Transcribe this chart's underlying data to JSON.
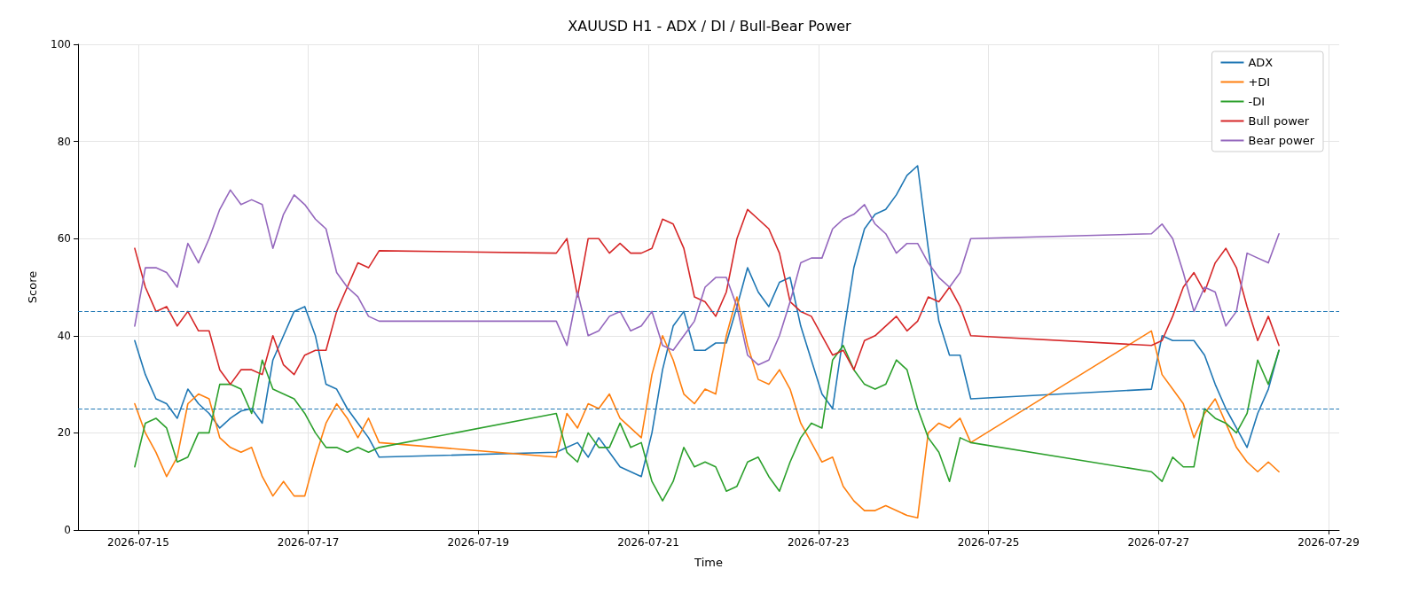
{
  "chart_data": {
    "type": "line",
    "title": "XAUUSD H1 - ADX / DI / Bull-Bear Power",
    "xlabel": "Time",
    "ylabel": "Score",
    "x": [
      "2026-07-14T23:00",
      "2026-07-15T02:00",
      "2026-07-15T05:00",
      "2026-07-15T08:00",
      "2026-07-15T11:00",
      "2026-07-15T14:00",
      "2026-07-15T17:00",
      "2026-07-15T20:00",
      "2026-07-15T23:00",
      "2026-07-16T02:00",
      "2026-07-16T05:00",
      "2026-07-16T08:00",
      "2026-07-16T11:00",
      "2026-07-16T14:00",
      "2026-07-16T17:00",
      "2026-07-16T20:00",
      "2026-07-16T23:00",
      "2026-07-17T02:00",
      "2026-07-17T05:00",
      "2026-07-17T08:00",
      "2026-07-17T11:00",
      "2026-07-17T14:00",
      "2026-07-17T17:00",
      "2026-07-17T20:00",
      "2026-07-19T22:00",
      "2026-07-20T01:00",
      "2026-07-20T04:00",
      "2026-07-20T07:00",
      "2026-07-20T10:00",
      "2026-07-20T13:00",
      "2026-07-20T16:00",
      "2026-07-20T19:00",
      "2026-07-20T22:00",
      "2026-07-21T01:00",
      "2026-07-21T04:00",
      "2026-07-21T07:00",
      "2026-07-21T10:00",
      "2026-07-21T13:00",
      "2026-07-21T16:00",
      "2026-07-21T19:00",
      "2026-07-21T22:00",
      "2026-07-22T01:00",
      "2026-07-22T04:00",
      "2026-07-22T07:00",
      "2026-07-22T10:00",
      "2026-07-22T13:00",
      "2026-07-22T16:00",
      "2026-07-22T19:00",
      "2026-07-22T22:00",
      "2026-07-23T01:00",
      "2026-07-23T04:00",
      "2026-07-23T07:00",
      "2026-07-23T10:00",
      "2026-07-23T13:00",
      "2026-07-23T16:00",
      "2026-07-23T19:00",
      "2026-07-23T22:00",
      "2026-07-24T01:00",
      "2026-07-24T04:00",
      "2026-07-24T07:00",
      "2026-07-24T10:00",
      "2026-07-24T13:00",
      "2026-07-24T16:00",
      "2026-07-24T19:00",
      "2026-07-26T22:00",
      "2026-07-27T01:00",
      "2026-07-27T04:00",
      "2026-07-27T07:00",
      "2026-07-27T10:00",
      "2026-07-27T13:00",
      "2026-07-27T16:00",
      "2026-07-27T19:00",
      "2026-07-27T22:00",
      "2026-07-28T01:00",
      "2026-07-28T04:00",
      "2026-07-28T07:00",
      "2026-07-28T10:00"
    ],
    "series": [
      {
        "name": "ADX",
        "color": "#1f77b4",
        "values": [
          39,
          32,
          27,
          26,
          23,
          29,
          26,
          24,
          21,
          23,
          24.5,
          25,
          22,
          35,
          40,
          45,
          46,
          40,
          30,
          29,
          25,
          22,
          19,
          15,
          16,
          17,
          18,
          15,
          19,
          16,
          13,
          12,
          11,
          20,
          33,
          42,
          45,
          37,
          37,
          38.5,
          38.5,
          46,
          54,
          49,
          46,
          51,
          52,
          42,
          35,
          28,
          25,
          40,
          54,
          62,
          65,
          66,
          69,
          73,
          75,
          58,
          43,
          36,
          36,
          27,
          29,
          40,
          39,
          39,
          39,
          36,
          30,
          25,
          21,
          17,
          24,
          29,
          37
        ]
      },
      {
        "name": "+DI",
        "color": "#ff7f0e",
        "values": [
          26,
          20,
          16,
          11,
          15,
          26,
          28,
          27,
          19,
          17,
          16,
          17,
          11,
          7,
          10,
          7,
          7,
          15,
          22,
          26,
          23,
          19,
          23,
          18,
          15,
          24,
          21,
          26,
          25,
          28,
          23,
          21,
          19,
          32,
          40,
          35,
          28,
          26,
          29,
          28,
          40,
          48,
          38,
          31,
          30,
          33,
          29,
          22,
          18,
          14,
          15,
          9,
          6,
          4,
          4,
          5,
          4,
          3,
          2.5,
          20,
          22,
          21,
          23,
          18,
          41,
          32,
          29,
          26,
          19,
          24,
          27,
          22,
          17,
          14,
          12,
          14,
          12
        ]
      },
      {
        "name": "-DI",
        "color": "#2ca02c",
        "values": [
          13,
          22,
          23,
          21,
          14,
          15,
          20,
          20,
          30,
          30,
          29,
          24,
          35,
          29,
          28,
          27,
          24,
          20,
          17,
          17,
          16,
          17,
          16,
          17,
          24,
          16,
          14,
          20,
          17,
          17,
          22,
          17,
          18,
          10,
          6,
          10,
          17,
          13,
          14,
          13,
          8,
          9,
          14,
          15,
          11,
          8,
          14,
          19,
          22,
          21,
          35,
          38,
          33,
          30,
          29,
          30,
          35,
          33,
          25,
          19,
          16,
          10,
          19,
          18,
          12,
          10,
          15,
          13,
          13,
          25,
          23,
          22,
          20,
          24,
          35,
          30,
          37
        ]
      },
      {
        "name": "Bull power",
        "color": "#d62728",
        "values": [
          58,
          50,
          45,
          46,
          42,
          45,
          41,
          41,
          33,
          30,
          33,
          33,
          32,
          40,
          34,
          32,
          36,
          37,
          37,
          45,
          50,
          55,
          54,
          57.5,
          57,
          60,
          48,
          60,
          60,
          57,
          59,
          57,
          57,
          58,
          64,
          63,
          58,
          48,
          47,
          44,
          49,
          60,
          66,
          64,
          62,
          57,
          47,
          45,
          44,
          40,
          36,
          37,
          33,
          39,
          40,
          42,
          44,
          41,
          43,
          48,
          47,
          50,
          46,
          40,
          38,
          39,
          44,
          50,
          53,
          49,
          55,
          58,
          54,
          46,
          39,
          44,
          38
        ]
      },
      {
        "name": "Bear power",
        "color": "#9467bd",
        "values": [
          42,
          54,
          54,
          53,
          50,
          59,
          55,
          60,
          66,
          70,
          67,
          68,
          67,
          58,
          65,
          69,
          67,
          64,
          62,
          53,
          50,
          48,
          44,
          43,
          43,
          38,
          49,
          40,
          41,
          44,
          45,
          41,
          42,
          45,
          38,
          37,
          40,
          43,
          50,
          52,
          52,
          46,
          36,
          34,
          35,
          40,
          47,
          55,
          56,
          56,
          62,
          64,
          65,
          67,
          63,
          61,
          57,
          59,
          59,
          55,
          52,
          50,
          53,
          60,
          61,
          63,
          60,
          53,
          45,
          50,
          49,
          42,
          45,
          57,
          56,
          55,
          61
        ]
      }
    ],
    "xlim": [
      "2026-07-14T07:00",
      "2026-07-29T03:00"
    ],
    "xticks": [
      "2026-07-15",
      "2026-07-17",
      "2026-07-19",
      "2026-07-21",
      "2026-07-23",
      "2026-07-25",
      "2026-07-27",
      "2026-07-29"
    ],
    "ylim": [
      0,
      100
    ],
    "yticks": [
      0,
      20,
      40,
      60,
      80,
      100
    ],
    "ref_lines": [
      {
        "axis": "y",
        "value": 45,
        "color": "#1f77b4",
        "line_style": "dashed"
      },
      {
        "axis": "y",
        "value": 25,
        "color": "#1f77b4",
        "line_style": "dashed"
      }
    ],
    "grid": true,
    "legend": "top right",
    "marker": "none",
    "line_style": "solid"
  }
}
